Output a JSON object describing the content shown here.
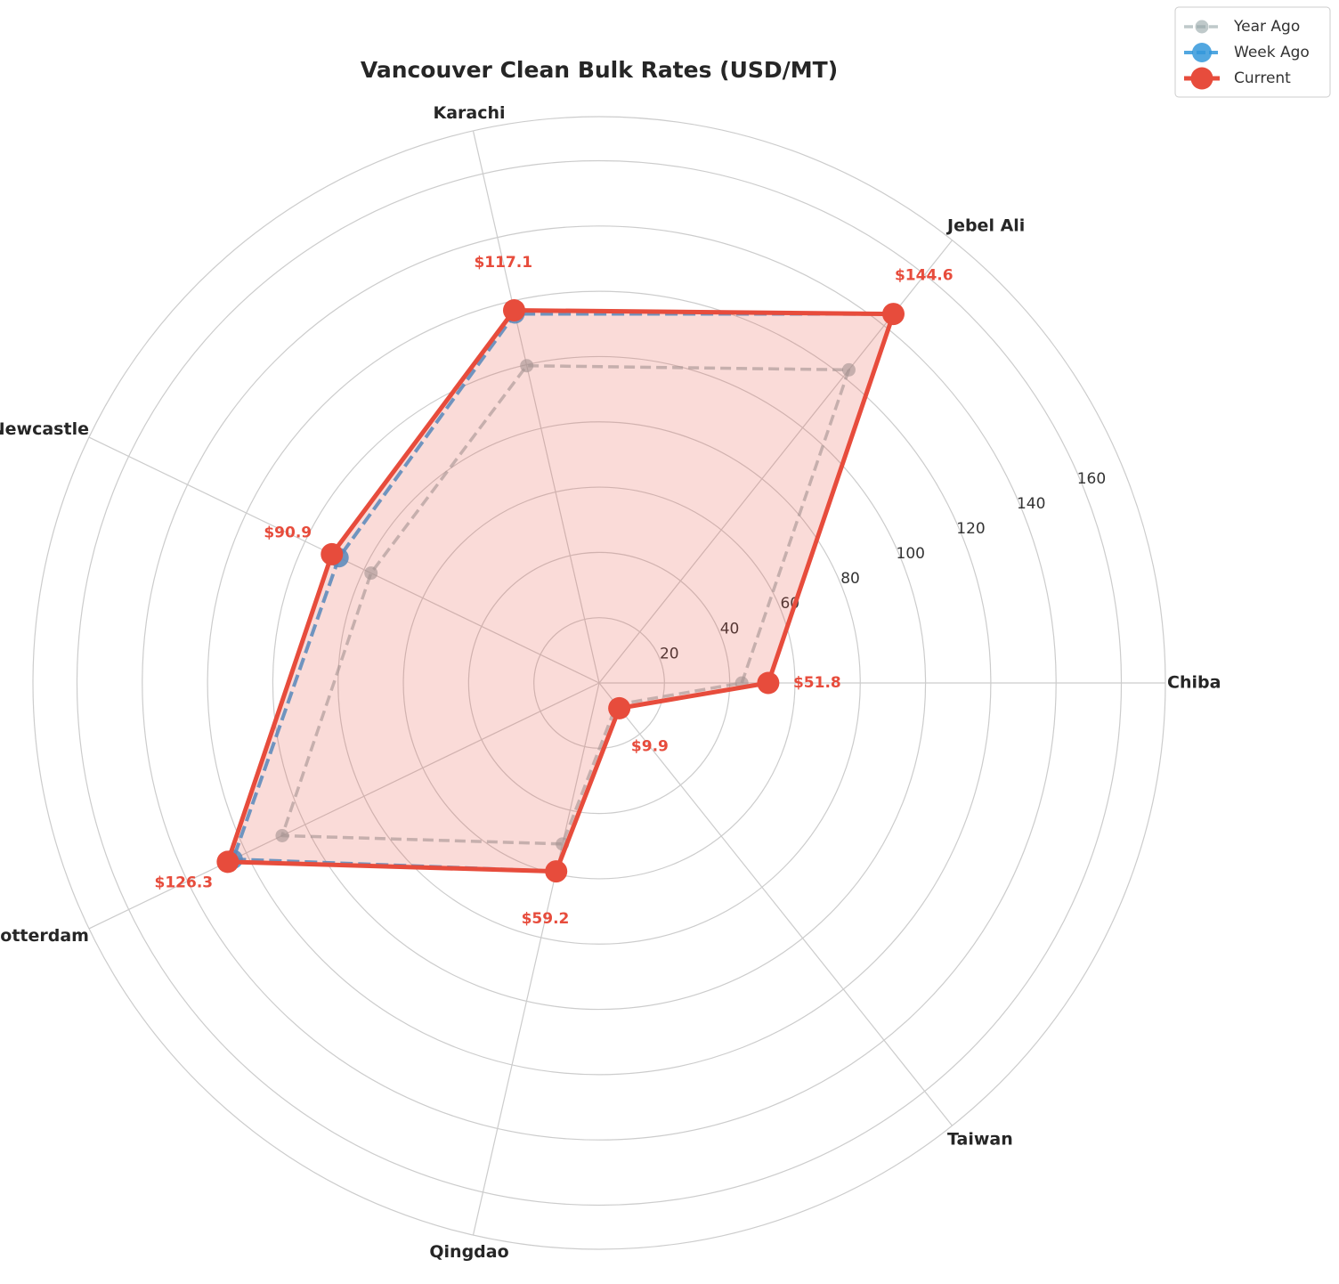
{
  "chart_data": {
    "type": "radar",
    "title": "Vancouver Clean Bulk Rates (USD/MT)",
    "categories": [
      "Chiba",
      "Jebel Ali",
      "Karachi",
      "Newcastle",
      "Rotterdam",
      "Qingdao",
      "Taiwan"
    ],
    "series": [
      {
        "name": "Year Ago",
        "color": "#95a5a6",
        "values": [
          43.7,
          122.7,
          99.7,
          77.6,
          107.8,
          50.6,
          8.5
        ]
      },
      {
        "name": "Week Ago",
        "color": "#3498db",
        "values": [
          51.8,
          144.6,
          116.0,
          88.5,
          124.5,
          59.2,
          9.9
        ]
      },
      {
        "name": "Current",
        "color": "#e74c3c",
        "values": [
          51.8,
          144.6,
          117.1,
          90.9,
          126.3,
          59.2,
          9.9
        ],
        "value_labels": [
          "$51.8",
          "$144.6",
          "$117.1",
          "$90.9",
          "$126.3",
          "$59.2",
          "$9.9"
        ]
      }
    ],
    "ylim": [
      0,
      173.5
    ],
    "yticks": [
      20,
      40,
      60,
      80,
      100,
      120,
      140,
      160
    ],
    "grid": true,
    "legend": "upper right"
  }
}
